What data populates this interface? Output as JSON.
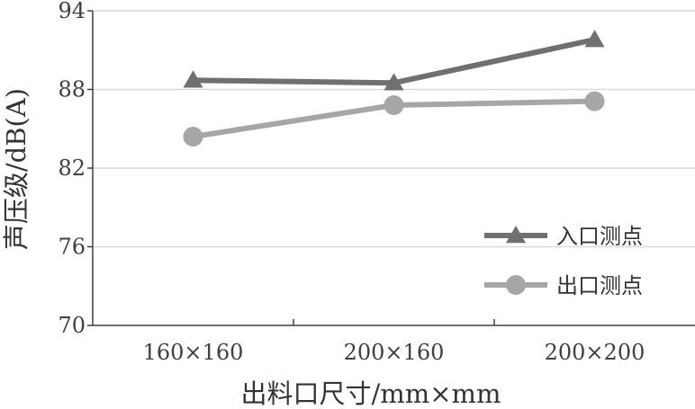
{
  "chart_data": {
    "type": "line",
    "title": "",
    "xlabel": "出料口尺寸/mm×mm",
    "ylabel": "声压级/dB(A)",
    "categories": [
      "160×160",
      "200×160",
      "200×200"
    ],
    "ylim": [
      70,
      94
    ],
    "yticks": [
      "70",
      "76",
      "82",
      "88",
      "94"
    ],
    "grid": "horizontal",
    "legend_position": "bottom-right",
    "series": [
      {
        "name": "入口测点",
        "values": [
          88.7,
          88.5,
          91.8
        ],
        "color": "#707070",
        "marker": "triangle"
      },
      {
        "name": "出口测点",
        "values": [
          84.4,
          86.8,
          87.1
        ],
        "color": "#a6a6a6",
        "marker": "circle"
      }
    ]
  }
}
